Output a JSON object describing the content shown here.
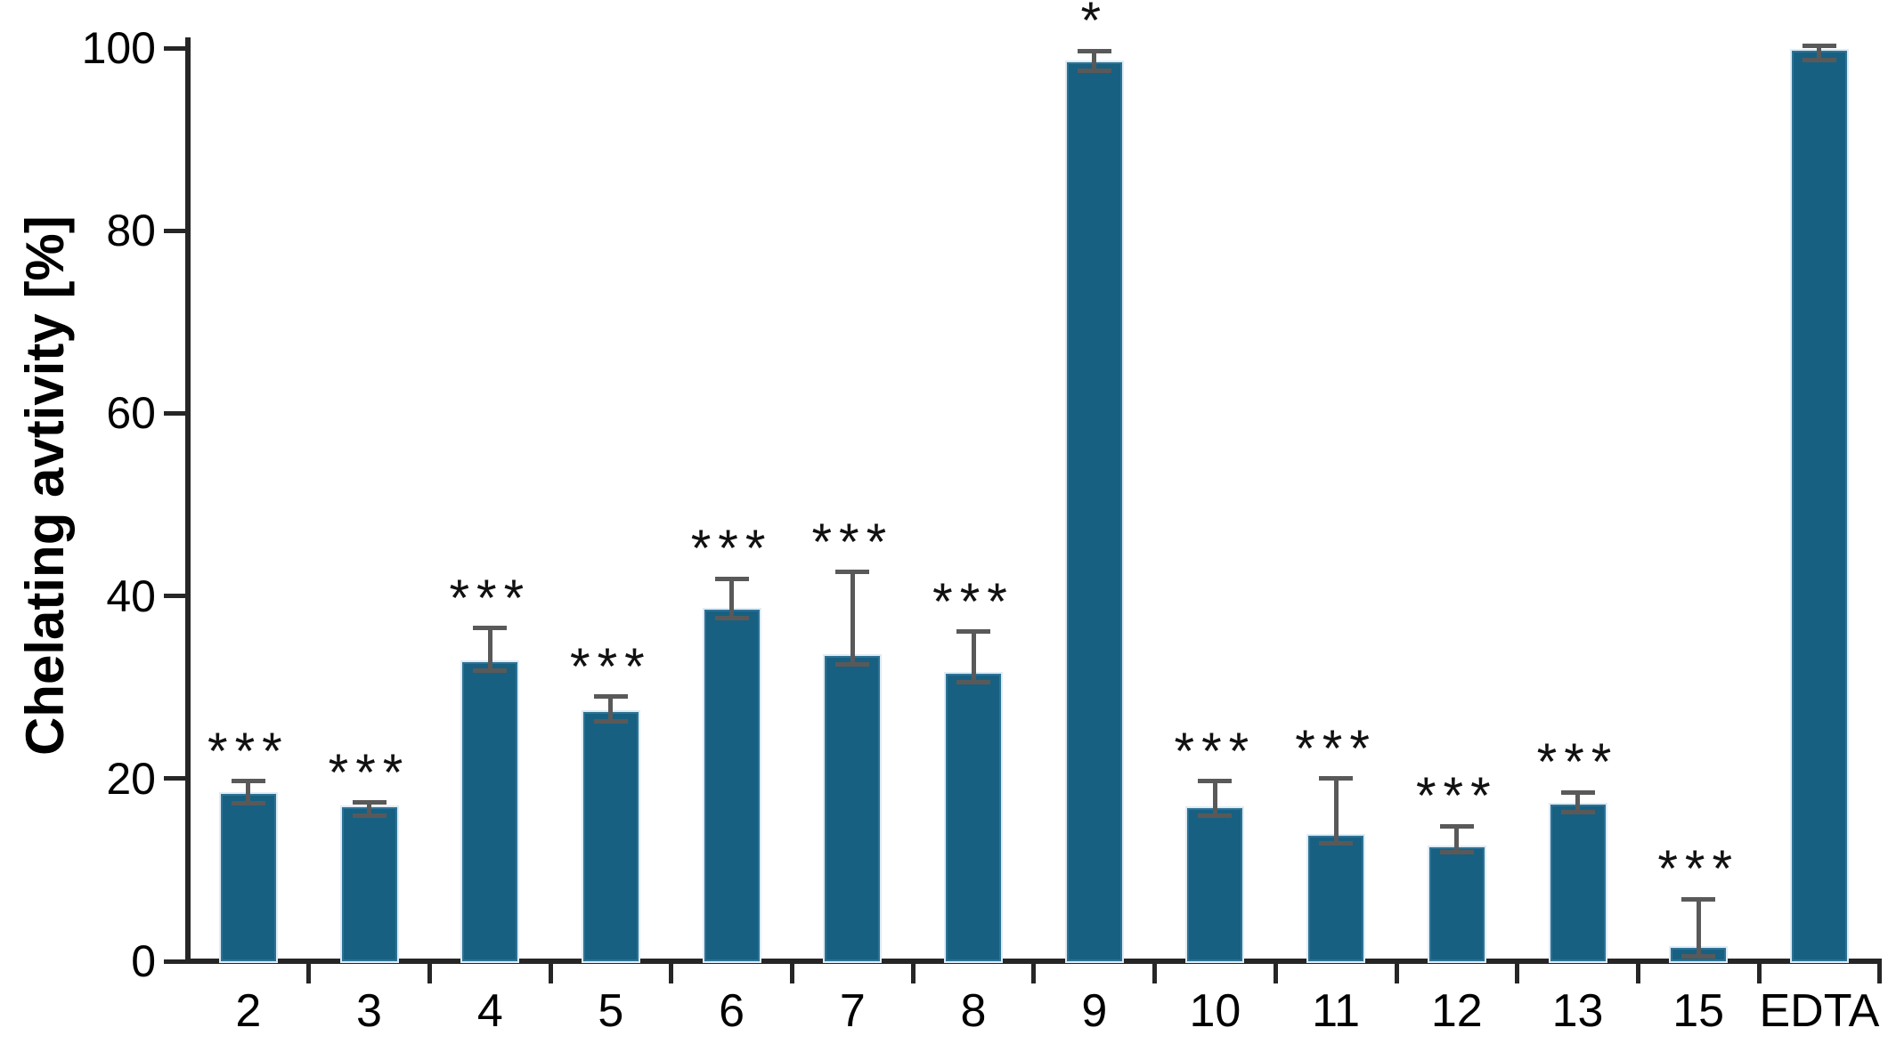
{
  "chart_data": {
    "type": "bar",
    "title": "",
    "ylabel": "Chelating avtivity [%]",
    "xlabel": "",
    "ylim": [
      0,
      100
    ],
    "yticks": [
      0,
      20,
      40,
      60,
      80,
      100
    ],
    "grid": false,
    "legend": "none",
    "categories": [
      "2",
      "3",
      "4",
      "5",
      "6",
      "7",
      "8",
      "9",
      "10",
      "11",
      "12",
      "13",
      "15",
      "EDTA"
    ],
    "values": [
      18.3,
      16.9,
      32.8,
      27.3,
      38.5,
      33.4,
      31.5,
      98.4,
      16.8,
      13.7,
      12.5,
      17.2,
      1.5,
      99.7
    ],
    "error_up": [
      1.4,
      0.5,
      3.7,
      1.7,
      3.4,
      9.2,
      4.6,
      1.3,
      2.9,
      6.3,
      2.3,
      1.3,
      5.3,
      0.5
    ],
    "error_down": [
      1.0,
      1.0,
      1.0,
      1.0,
      0.9,
      0.9,
      0.9,
      0.9,
      0.9,
      0.8,
      0.6,
      0.9,
      1.0,
      1.0
    ],
    "significance": [
      "***",
      "***",
      "***",
      "***",
      "***",
      "***",
      "***",
      "*",
      "***",
      "***",
      "***",
      "***",
      "***",
      ""
    ],
    "colors": {
      "bar_fill": "#176082",
      "bar_border": "#2d7295",
      "error_bar": "#595959",
      "axis": "#262626",
      "text": "#000000",
      "background": "#ffffff"
    }
  }
}
